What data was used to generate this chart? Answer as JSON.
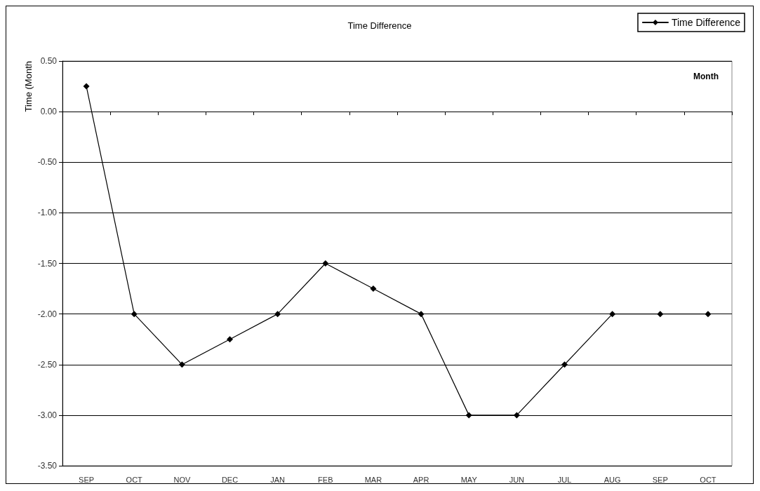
{
  "chart_data": {
    "type": "line",
    "title": "Time Difference",
    "xlabel": "Month",
    "ylabel": "Time (Month",
    "categories": [
      "SEP",
      "OCT",
      "NOV",
      "DEC",
      "JAN",
      "FEB",
      "MAR",
      "APR",
      "MAY",
      "JUN",
      "JUL",
      "AUG",
      "SEP",
      "OCT"
    ],
    "series": [
      {
        "name": "Time Difference",
        "color": "#000000",
        "values": [
          0.25,
          -2,
          -2.5,
          -2.25,
          -2,
          -1.5,
          -1.75,
          -2,
          -3,
          -3,
          -2.5,
          -2,
          -2,
          -2
        ]
      }
    ],
    "ylim": [
      -3.5,
      0.5
    ],
    "yticks": [
      {
        "value": 0.5,
        "label": "0.50"
      },
      {
        "value": 0,
        "label": "0.00"
      },
      {
        "value": -0.5,
        "label": "-0.50"
      },
      {
        "value": -1,
        "label": "-1.00"
      },
      {
        "value": -1.5,
        "label": "-1.50"
      },
      {
        "value": -2,
        "label": "-2.00"
      },
      {
        "value": -2.5,
        "label": "-2.50"
      },
      {
        "value": -3,
        "label": "-3.00"
      },
      {
        "value": -3.5,
        "label": "-3.50"
      }
    ],
    "grid": "y",
    "legend": "top right",
    "marker": "diamond",
    "line_style": "solid"
  }
}
